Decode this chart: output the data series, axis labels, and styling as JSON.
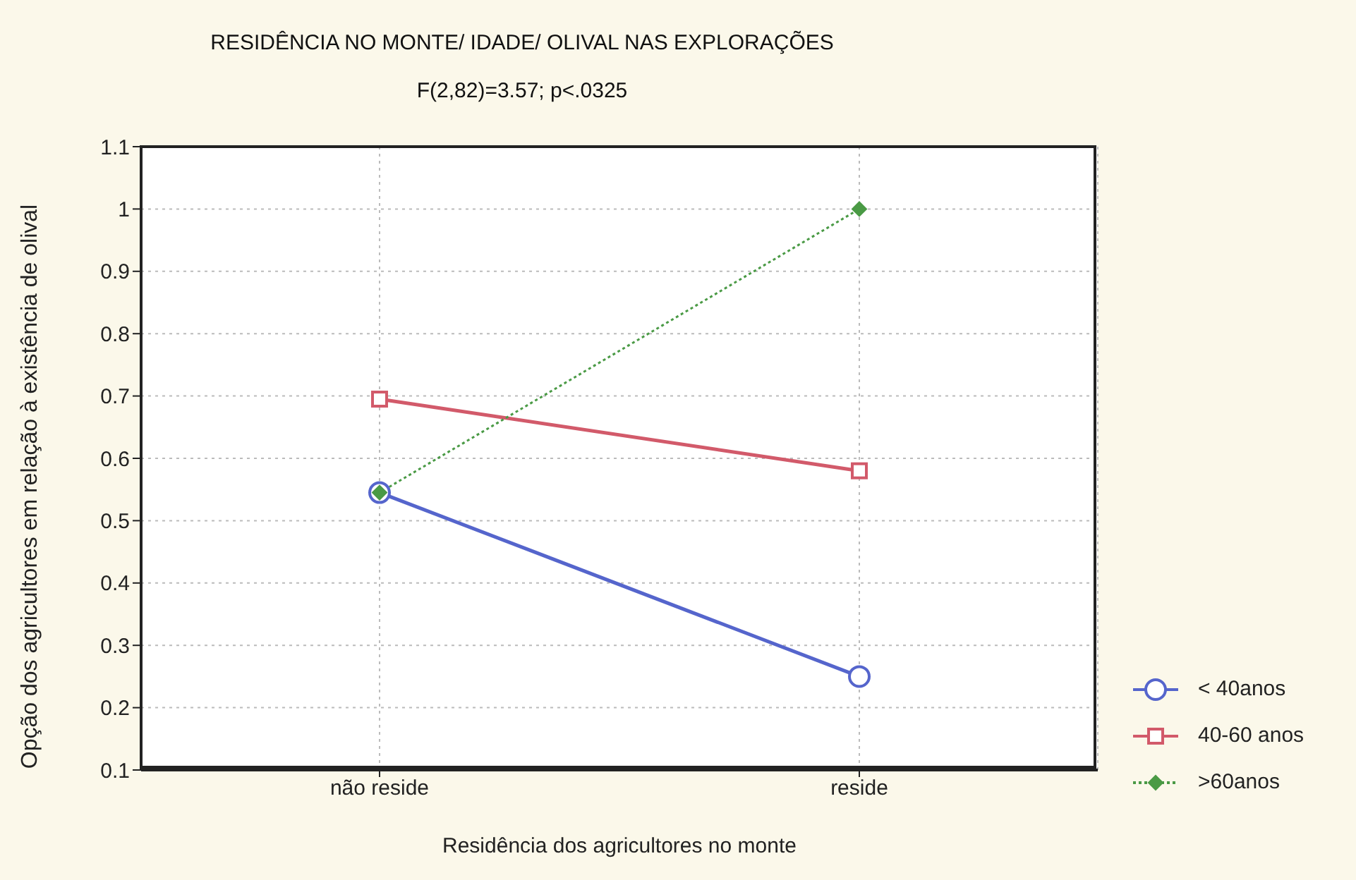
{
  "chart_data": {
    "type": "line",
    "title": "RESIDÊNCIA NO MONTE/ IDADE/ OLIVAL NAS EXPLORAÇÕES",
    "subtitle": "F(2,82)=3.57; p<.0325",
    "xlabel": "Residência dos agricultores no monte",
    "ylabel": "Opção dos agricultores em relação à existência de olival",
    "categories": [
      "não reside",
      "reside"
    ],
    "series": [
      {
        "name": "< 40anos",
        "color": "#5565cc",
        "values": [
          0.545,
          0.25
        ],
        "marker": "circle",
        "line_style": "solid"
      },
      {
        "name": "40-60 anos",
        "color": "#d25a6a",
        "values": [
          0.695,
          0.58
        ],
        "marker": "square",
        "line_style": "solid"
      },
      {
        "name": ">60anos",
        "color": "#4a9a45",
        "values": [
          0.545,
          1.0
        ],
        "marker": "diamond",
        "line_style": "dotted"
      }
    ],
    "ylim": [
      0.1,
      1.1
    ],
    "yticks": [
      0.1,
      0.2,
      0.3,
      0.4,
      0.5,
      0.6,
      0.7,
      0.8,
      0.9,
      1,
      1.1
    ],
    "grid": true,
    "legend": "bottom right"
  }
}
